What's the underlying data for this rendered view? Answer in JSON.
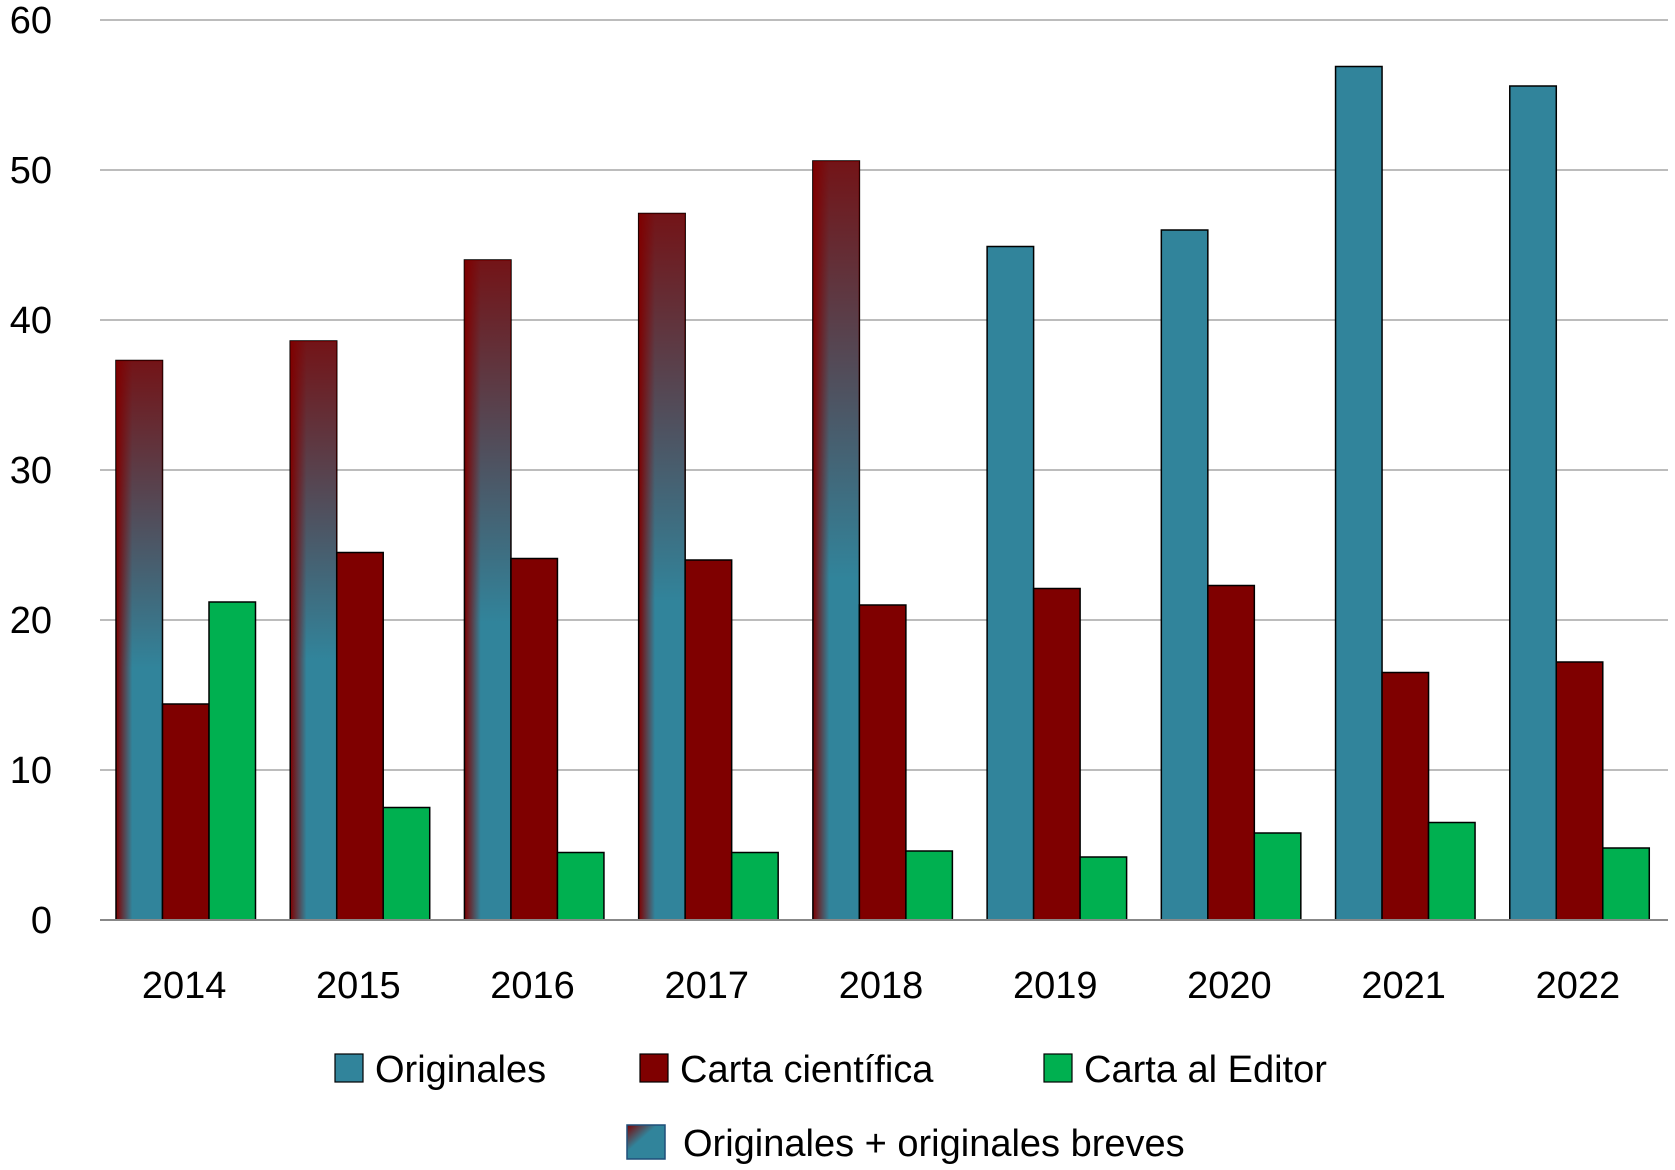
{
  "chart_data": {
    "type": "bar",
    "categories": [
      "2014",
      "2015",
      "2016",
      "2017",
      "2018",
      "2019",
      "2020",
      "2021",
      "2022"
    ],
    "series": [
      {
        "name": "Originales",
        "color": "#31849b",
        "values": [
          37.3,
          38.6,
          44.0,
          47.1,
          50.6,
          44.9,
          46.0,
          56.9,
          55.6
        ]
      },
      {
        "name": "Carta científica",
        "color": "#7f0000",
        "values": [
          14.4,
          24.5,
          24.1,
          24.0,
          21.0,
          22.1,
          22.3,
          16.5,
          17.2
        ]
      },
      {
        "name": "Carta al Editor",
        "color": "#00b050",
        "values": [
          21.2,
          7.5,
          4.5,
          4.5,
          4.6,
          4.2,
          5.8,
          6.5,
          4.8
        ]
      }
    ],
    "gradient_legend": {
      "name": "Originales + originales breves",
      "years": [
        "2014",
        "2015",
        "2016",
        "2017",
        "2018"
      ]
    },
    "ylim": [
      0,
      60
    ],
    "yticks": [
      "0",
      "10",
      "20",
      "30",
      "40",
      "50",
      "60"
    ],
    "grid": true,
    "legend_position": "bottom"
  }
}
